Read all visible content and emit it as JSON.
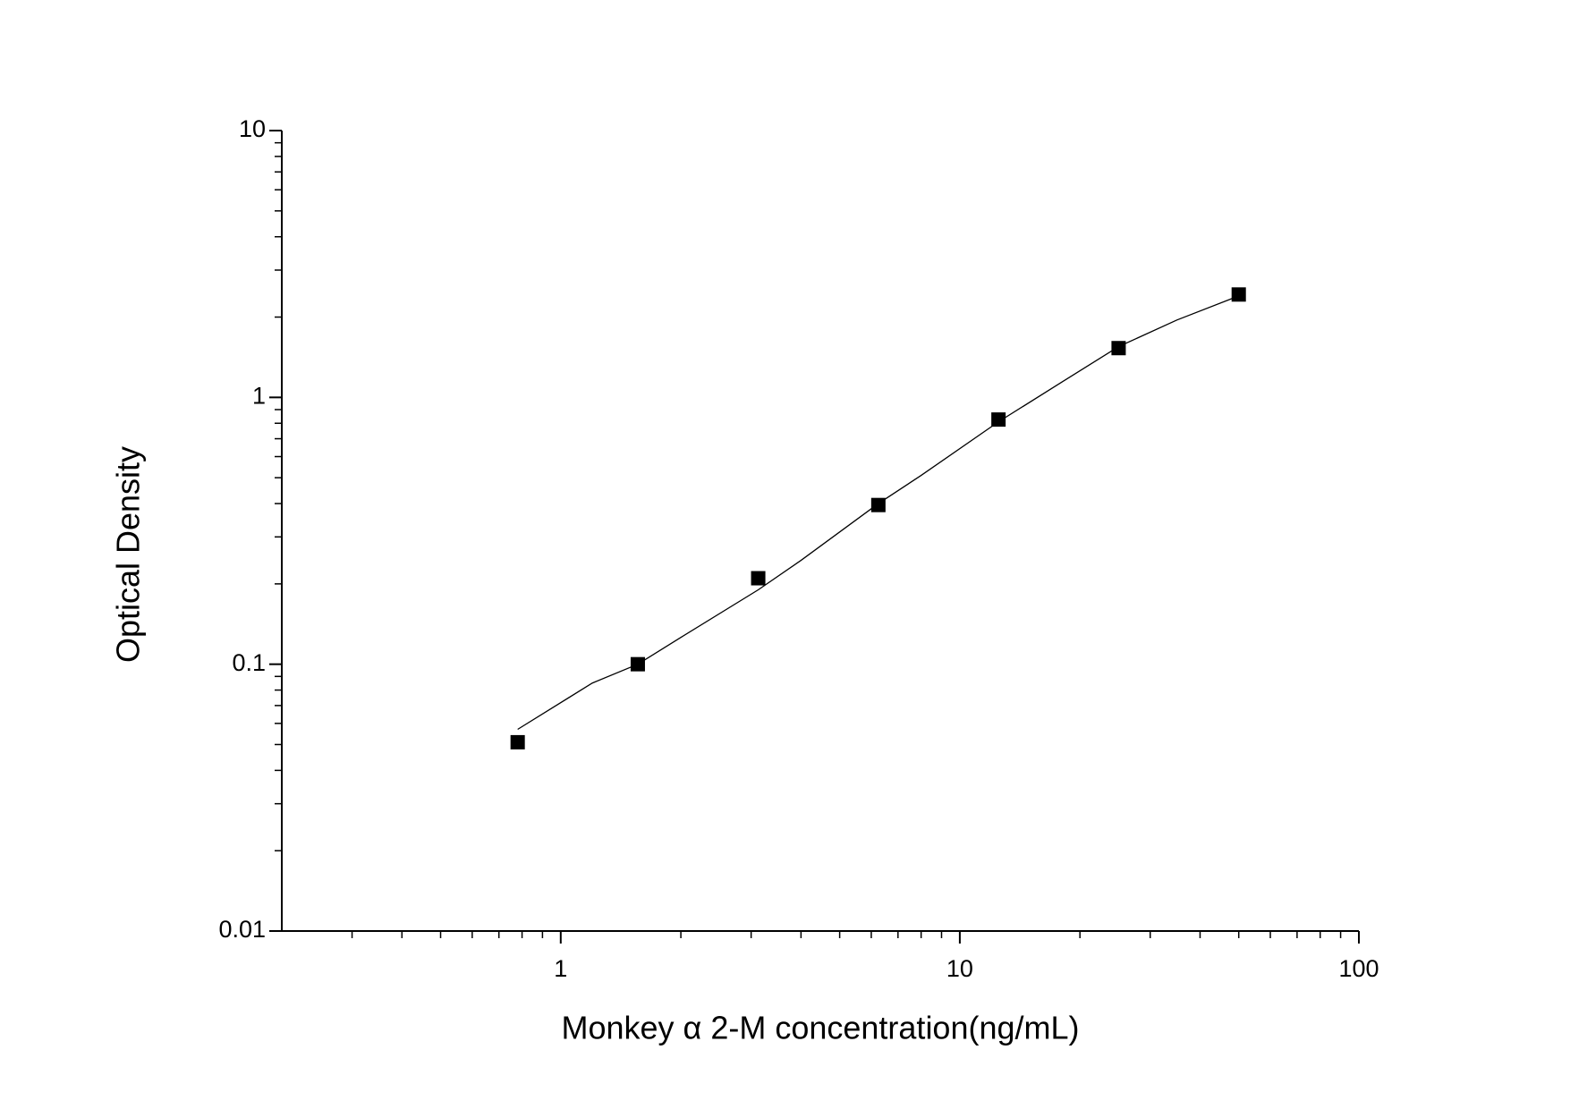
{
  "chart_data": {
    "type": "scatter",
    "xlabel": "Monkey α 2-M concentration(ng/mL)",
    "ylabel": "Optical Density",
    "xscale": "log",
    "yscale": "log",
    "xlim": [
      0.2,
      100
    ],
    "ylim": [
      0.01,
      10
    ],
    "xticks": [
      1,
      10,
      100
    ],
    "yticks": [
      0.01,
      0.1,
      1,
      10
    ],
    "xminorticks": [
      0.3,
      0.4,
      0.5,
      0.6,
      0.7,
      0.8,
      0.9,
      2,
      3,
      4,
      5,
      6,
      7,
      8,
      9,
      20,
      30,
      40,
      50,
      60,
      70,
      80,
      90
    ],
    "yminorticks": [
      0.02,
      0.03,
      0.04,
      0.05,
      0.06,
      0.07,
      0.08,
      0.09,
      0.2,
      0.3,
      0.4,
      0.5,
      0.6,
      0.7,
      0.8,
      0.9,
      2,
      3,
      4,
      5,
      6,
      7,
      8,
      9
    ],
    "series": [
      {
        "kind": "points",
        "color": "#000000",
        "x": [
          0.78,
          1.56,
          3.125,
          6.25,
          12.5,
          25,
          50
        ],
        "values": [
          0.051,
          0.1,
          0.21,
          0.395,
          0.826,
          1.53,
          2.43
        ]
      },
      {
        "kind": "curve",
        "color": "#000000",
        "x": [
          0.78,
          1.2,
          1.56,
          2,
          3.125,
          4,
          6.25,
          8,
          12.5,
          18,
          25,
          35,
          50
        ],
        "values": [
          0.057,
          0.085,
          0.1,
          0.126,
          0.19,
          0.245,
          0.4,
          0.51,
          0.81,
          1.14,
          1.55,
          1.95,
          2.4
        ]
      }
    ]
  }
}
